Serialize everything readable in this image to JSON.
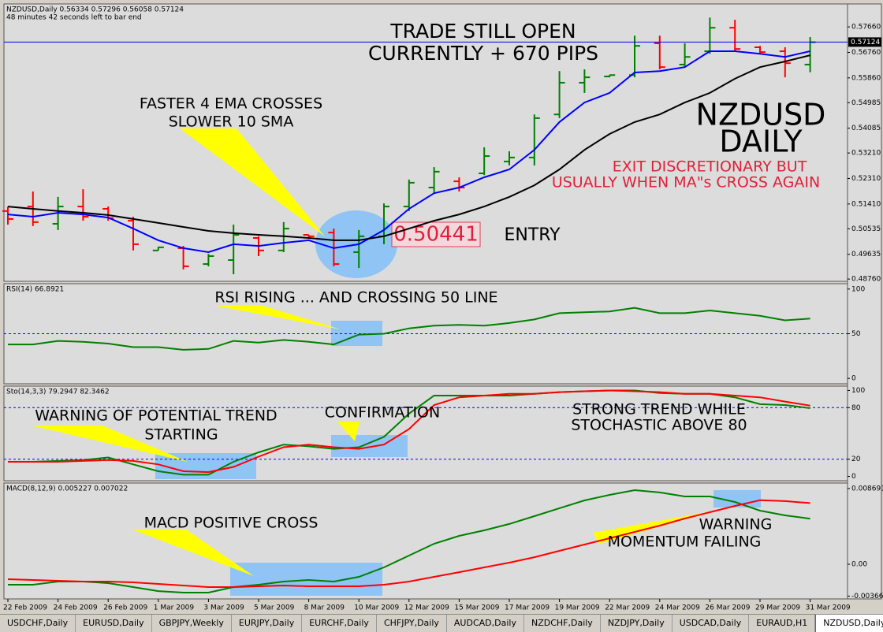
{
  "chart_data": [
    {
      "type": "ohlc",
      "title": "NZDUSD,Daily  0.56334 0.57296 0.56058 0.57124",
      "subtitle": "48 minutes 42 seconds left to bar end",
      "open": [
        0.5116,
        0.5132,
        0.5071,
        0.5132,
        0.5124,
        0.5082,
        0.4977,
        0.4985,
        0.4929,
        0.4943,
        0.5021,
        0.4977,
        0.5032,
        0.504,
        0.4971,
        0.5027,
        0.5132,
        0.5199,
        0.5221,
        0.5249,
        0.5291,
        0.5305,
        0.5457,
        0.5569,
        0.5591,
        0.5596,
        0.5708,
        0.5633,
        0.568,
        0.5763,
        0.5694,
        0.568,
        0.5633
      ],
      "high": [
        0.5132,
        0.5185,
        0.5166,
        0.5193,
        0.5132,
        0.5096,
        0.499,
        0.4993,
        0.4965,
        0.5068,
        0.5027,
        0.5077,
        0.5032,
        0.5054,
        0.5049,
        0.5143,
        0.5227,
        0.5271,
        0.5235,
        0.5341,
        0.5327,
        0.5457,
        0.561,
        0.5616,
        0.5596,
        0.5735,
        0.5735,
        0.5708,
        0.5799,
        0.5791,
        0.5699,
        0.5694,
        0.573
      ],
      "low": [
        0.5068,
        0.5063,
        0.5049,
        0.5082,
        0.5082,
        0.4977,
        0.4977,
        0.491,
        0.4921,
        0.4893,
        0.4957,
        0.4971,
        0.5021,
        0.4921,
        0.4915,
        0.4999,
        0.5116,
        0.5179,
        0.5185,
        0.5243,
        0.5277,
        0.5277,
        0.5444,
        0.5533,
        0.5588,
        0.5588,
        0.5616,
        0.5624,
        0.5671,
        0.568,
        0.5671,
        0.5588,
        0.5606
      ],
      "close": [
        0.5088,
        0.5077,
        0.5132,
        0.5096,
        0.5091,
        0.4999,
        0.4988,
        0.4921,
        0.4957,
        0.5032,
        0.4977,
        0.5054,
        0.5027,
        0.4929,
        0.5027,
        0.5132,
        0.5216,
        0.5255,
        0.5199,
        0.531,
        0.5305,
        0.5444,
        0.5569,
        0.5588,
        0.5596,
        0.5699,
        0.5624,
        0.566,
        0.5763,
        0.5688,
        0.5677,
        0.5638,
        0.5712
      ],
      "up_color": "#008000",
      "down_color": "#ff0000",
      "lines": [
        {
          "color": "#0000ff",
          "values": [
            0.5104,
            0.5096,
            0.511,
            0.5104,
            0.5093,
            0.5054,
            0.5013,
            0.4985,
            0.4971,
            0.4999,
            0.4993,
            0.5004,
            0.5013,
            0.4985,
            0.4999,
            0.5049,
            0.5124,
            0.5179,
            0.5199,
            0.5235,
            0.5263,
            0.5332,
            0.543,
            0.5499,
            0.5533,
            0.5605,
            0.561,
            0.5624,
            0.568,
            0.568,
            0.5671,
            0.566,
            0.568
          ]
        },
        {
          "color": "#000000",
          "values": [
            0.5132,
            0.5124,
            0.5116,
            0.511,
            0.5102,
            0.5088,
            0.5074,
            0.506,
            0.5046,
            0.5038,
            0.5032,
            0.5027,
            0.5021,
            0.5013,
            0.5013,
            0.5027,
            0.5054,
            0.5082,
            0.5104,
            0.5132,
            0.5166,
            0.5207,
            0.5263,
            0.5332,
            0.5388,
            0.543,
            0.5457,
            0.5499,
            0.5533,
            0.5583,
            0.5624,
            0.5644,
            0.5666
          ]
        }
      ],
      "current_price": 0.57124,
      "current_price_color": "#0000ff",
      "entry_price": 0.50441,
      "ylim": [
        0.4868,
        0.5847
      ],
      "yticks": [
        {
          "value": 0.5766,
          "label": "0.57660"
        },
        {
          "value": 0.5676,
          "label": "0.56760"
        },
        {
          "value": 0.5586,
          "label": "0.55860"
        },
        0.54985,
        0.54085,
        {
          "value": 0.5321,
          "label": "0.53210"
        },
        {
          "value": 0.5231,
          "label": "0.52310"
        },
        {
          "value": 0.5141,
          "label": "0.51410"
        },
        0.50535,
        0.49635,
        {
          "value": 0.4876,
          "label": "0.48760"
        }
      ],
      "annotations": [
        "TRADE STILL OPEN",
        "CURRENTLY + 670 PIPS",
        "FASTER 4 EMA CROSSES",
        "SLOWER 10 SMA",
        "NZDUSD",
        "DAILY",
        "EXIT DISCRETIONARY BUT",
        "USUALLY WHEN MA\"s CROSS AGAIN",
        "ENTRY"
      ]
    },
    {
      "type": "line",
      "title": "RSI(14) 66.8921",
      "series": [
        {
          "color": "#008000",
          "values": [
            38,
            38,
            42,
            41,
            39,
            35,
            35,
            32,
            33,
            42,
            40,
            43,
            41,
            38,
            49,
            50,
            56,
            59,
            60,
            59,
            62,
            66,
            73,
            74,
            75,
            79,
            73,
            73,
            76,
            73,
            70,
            65,
            66.89
          ]
        }
      ],
      "ylim": [
        -6,
        106
      ],
      "yticks": [
        0,
        50,
        100
      ],
      "levels": [
        50
      ],
      "level_color": "#0000ff",
      "annotations": [
        "RSI RISING ... AND CROSSING 50 LINE"
      ]
    },
    {
      "type": "line",
      "title": "Sto(14,3,3) 79.2947 82.3462",
      "series": [
        {
          "color": "#008000",
          "values": [
            17,
            17,
            18,
            19,
            22,
            14,
            6,
            2,
            2,
            17,
            28,
            37,
            35,
            32,
            34,
            46,
            73,
            94,
            94,
            94,
            94,
            96,
            98,
            99,
            100,
            100,
            97,
            96,
            96,
            92,
            84,
            83,
            79.29
          ]
        },
        {
          "color": "#ff0000",
          "values": [
            17,
            17,
            17,
            18,
            19,
            18,
            14,
            6,
            5,
            11,
            23,
            34,
            37,
            34,
            32,
            37,
            55,
            83,
            92,
            94,
            96,
            96,
            98,
            99,
            100,
            99,
            98,
            96,
            96,
            94,
            92,
            87,
            82.35
          ]
        }
      ],
      "ylim": [
        -5,
        105
      ],
      "yticks": [
        0,
        20,
        80,
        100
      ],
      "levels": [
        20,
        80
      ],
      "level_color": "#0000ff",
      "annotations": [
        "WARNING OF POTENTIAL TREND",
        "STARTING",
        "CONFIRMATION",
        "STRONG TREND WHILE",
        "STOCHASTIC ABOVE 80"
      ]
    },
    {
      "type": "line",
      "title": "MACD(8,12,9) 0.005227 0.007022",
      "series": [
        {
          "color": "#008000",
          "values": [
            -0.00235,
            -0.00235,
            -0.00199,
            -0.00199,
            -0.00217,
            -0.00262,
            -0.00308,
            -0.00326,
            -0.00326,
            -0.00262,
            -0.00235,
            -0.00199,
            -0.00181,
            -0.00199,
            -0.00145,
            -0.00036,
            0.001,
            0.00235,
            0.00326,
            0.00389,
            0.00462,
            0.00552,
            0.00643,
            0.00733,
            0.00796,
            0.00851,
            0.00824,
            0.00778,
            0.00778,
            0.00715,
            0.00615,
            0.00561,
            0.005227
          ]
        },
        {
          "color": "#ff0000",
          "values": [
            -0.00172,
            -0.00181,
            -0.0019,
            -0.00199,
            -0.00199,
            -0.00208,
            -0.00226,
            -0.00244,
            -0.00262,
            -0.00262,
            -0.00253,
            -0.00244,
            -0.00253,
            -0.00253,
            -0.00253,
            -0.00235,
            -0.00199,
            -0.00145,
            -0.00091,
            -0.00036,
            0.00018,
            0.00081,
            0.00154,
            0.00226,
            0.00299,
            0.00371,
            0.00443,
            0.00525,
            0.00597,
            0.0067,
            0.00735,
            0.00725,
            0.007022
          ]
        }
      ],
      "ylim": [
        -0.00398,
        0.00932
      ],
      "yticks": [
        -0.00366,
        {
          "value": 0,
          "label": "0.00"
        },
        0.008691
      ],
      "categories": [
        "22 Feb 2009",
        null,
        "24 Feb 2009",
        null,
        "26 Feb 2009",
        null,
        "1 Mar 2009",
        null,
        "3 Mar 2009",
        null,
        "5 Mar 2009",
        null,
        "8 Mar 2009",
        null,
        "10 Mar 2009",
        null,
        "12 Mar 2009",
        null,
        "15 Mar 2009",
        null,
        "17 Mar 2009",
        null,
        "19 Mar 2009",
        null,
        "22 Mar 2009",
        null,
        "24 Mar 2009",
        null,
        "26 Mar 2009",
        null,
        "29 Mar 2009",
        null,
        "31 Mar 2009"
      ],
      "annotations": [
        "MACD POSITIVE CROSS",
        "WARNING",
        "MOMENTUM FAILING"
      ]
    }
  ],
  "tabs": [
    "USDCHF,Daily",
    "EURUSD,Daily",
    "GBPJPY,Weekly",
    "EURJPY,Daily",
    "EURCHF,Daily",
    "CHFJPY,Daily",
    "AUDCAD,Daily",
    "NZDCHF,Daily",
    "NZDJPY,Daily",
    "USDCAD,Daily",
    "EURAUD,H1",
    "NZDUSD,Daily"
  ],
  "active_tab": 11
}
